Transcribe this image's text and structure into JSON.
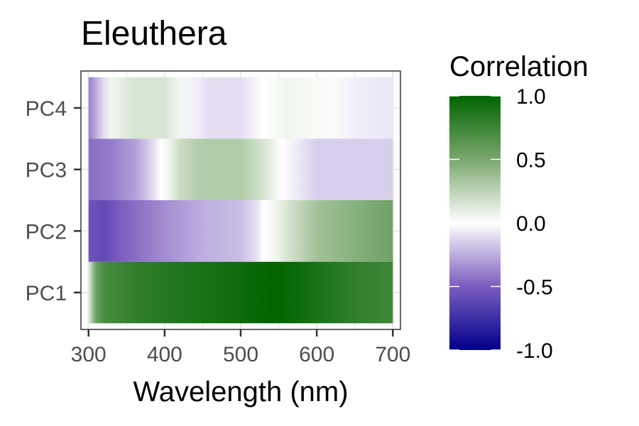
{
  "chart_data": {
    "type": "heatmap",
    "title": "Eleuthera",
    "xlabel": "Wavelength (nm)",
    "ylabel": "",
    "xlim": [
      290,
      710
    ],
    "xticks": [
      300,
      400,
      500,
      600,
      700
    ],
    "xtick_labels": [
      "300",
      "400",
      "500",
      "600",
      "700"
    ],
    "rows": [
      "PC1",
      "PC2",
      "PC3",
      "PC4"
    ],
    "grid": true,
    "series": [
      {
        "name": "PC1",
        "points": [
          [
            300,
            0.1
          ],
          [
            305,
            0.35
          ],
          [
            310,
            0.55
          ],
          [
            320,
            0.7
          ],
          [
            340,
            0.75
          ],
          [
            360,
            0.8
          ],
          [
            400,
            0.85
          ],
          [
            450,
            0.9
          ],
          [
            500,
            0.95
          ],
          [
            540,
            1.0
          ],
          [
            575,
            0.95
          ],
          [
            600,
            0.9
          ],
          [
            650,
            0.8
          ],
          [
            700,
            0.75
          ]
        ]
      },
      {
        "name": "PC2",
        "points": [
          [
            300,
            -0.55
          ],
          [
            320,
            -0.6
          ],
          [
            340,
            -0.5
          ],
          [
            360,
            -0.45
          ],
          [
            400,
            -0.35
          ],
          [
            450,
            -0.25
          ],
          [
            500,
            -0.2
          ],
          [
            520,
            -0.1
          ],
          [
            530,
            0.0
          ],
          [
            545,
            0.05
          ],
          [
            570,
            0.2
          ],
          [
            600,
            0.35
          ],
          [
            650,
            0.45
          ],
          [
            700,
            0.55
          ]
        ]
      },
      {
        "name": "PC3",
        "points": [
          [
            300,
            -0.45
          ],
          [
            330,
            -0.4
          ],
          [
            360,
            -0.3
          ],
          [
            380,
            -0.15
          ],
          [
            395,
            0.0
          ],
          [
            405,
            0.05
          ],
          [
            420,
            0.2
          ],
          [
            450,
            0.3
          ],
          [
            500,
            0.3
          ],
          [
            530,
            0.15
          ],
          [
            555,
            0.0
          ],
          [
            570,
            -0.05
          ],
          [
            600,
            -0.15
          ],
          [
            700,
            -0.15
          ]
        ]
      },
      {
        "name": "PC4",
        "points": [
          [
            300,
            -0.4
          ],
          [
            310,
            -0.25
          ],
          [
            320,
            -0.1
          ],
          [
            330,
            0.05
          ],
          [
            360,
            0.15
          ],
          [
            400,
            0.15
          ],
          [
            420,
            0.05
          ],
          [
            440,
            -0.05
          ],
          [
            460,
            -0.1
          ],
          [
            500,
            -0.1
          ],
          [
            530,
            0.0
          ],
          [
            560,
            0.05
          ],
          [
            620,
            0.02
          ],
          [
            650,
            -0.05
          ],
          [
            700,
            -0.08
          ]
        ]
      }
    ],
    "legend": {
      "title": "Correlation",
      "ticks": [
        1.0,
        0.5,
        0.0,
        -0.5,
        -1.0
      ],
      "tick_labels": [
        "1.0",
        "0.5",
        "0.0",
        "-0.5",
        "-1.0"
      ],
      "range": [
        -1.0,
        1.0
      ],
      "placement": "right"
    },
    "colors": {
      "low": "#00008B",
      "mid_low": "#7B5CBF",
      "mid": "#FFFFFF",
      "mid_high": "#7AA86E",
      "high": "#006400",
      "panel_border": "#333333",
      "grid": "#EBEBEB",
      "tick_text": "#4D4D4D"
    }
  }
}
